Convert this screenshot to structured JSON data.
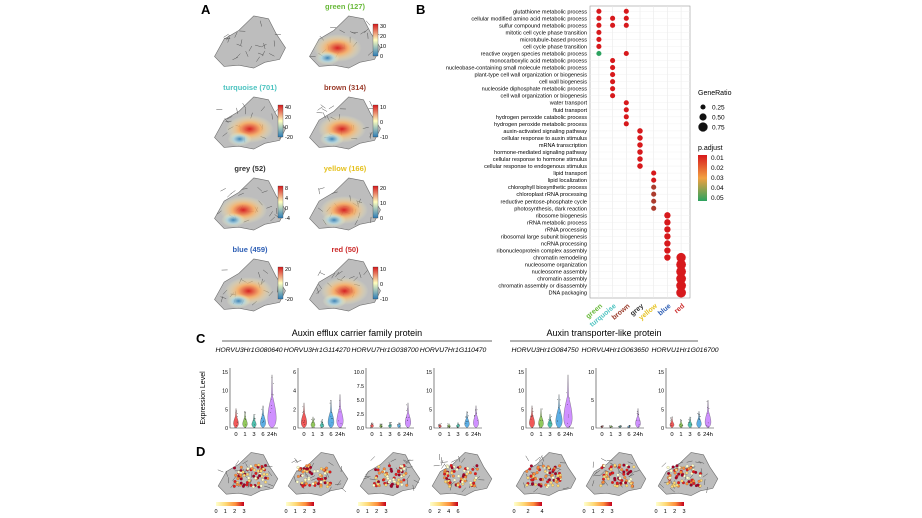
{
  "panel_letters": {
    "a": "A",
    "b": "B",
    "c": "C",
    "d": "D"
  },
  "palette": {
    "panel_bg": "#ffffff",
    "tissue": "#6e6e6e",
    "tissue_light": "#bdbdbd",
    "heat_low": "#2c7bb6",
    "heat_mid": "#ffffbf",
    "heat_high": "#d7191c",
    "dot_low": "#d7191c",
    "dot_high": "#2ca25f",
    "violin_colors": [
      "#ef3b3b",
      "#7fbf3f",
      "#2fb5a0",
      "#3fa0e0",
      "#c77cff"
    ],
    "yellow_ramp": [
      "#ffffcc",
      "#fed976",
      "#fd8d3c",
      "#e31a1c",
      "#a50026"
    ]
  },
  "panelA": {
    "modules": [
      {
        "label": "",
        "color": "#333333",
        "ticks": []
      },
      {
        "label": "green (127)",
        "color": "#69b93a",
        "ticks": [
          "30",
          "20",
          "10",
          "0"
        ]
      },
      {
        "label": "turquoise (701)",
        "color": "#4cc3c0",
        "ticks": [
          "40",
          "20",
          "0",
          "-20"
        ]
      },
      {
        "label": "brown (314)",
        "color": "#9a3b2a",
        "ticks": [
          "10",
          "0",
          "-10"
        ]
      },
      {
        "label": "grey (52)",
        "color": "#333333",
        "ticks": [
          "8",
          "4",
          "0",
          "-4"
        ]
      },
      {
        "label": "yellow (166)",
        "color": "#e5c11e",
        "ticks": [
          "20",
          "10",
          "0"
        ]
      },
      {
        "label": "blue (459)",
        "color": "#2e5fb5",
        "ticks": [
          "20",
          "0",
          "-20"
        ]
      },
      {
        "label": "red (50)",
        "color": "#cc2a2a",
        "ticks": [
          "10",
          "0",
          "-10"
        ]
      }
    ]
  },
  "panelB": {
    "terms": [
      "glutathione metabolic process",
      "cellular modified amino acid metabolic process",
      "sulfur compound metabolic process",
      "mitotic cell cycle phase transition",
      "microtubule-based process",
      "cell cycle phase transition",
      "reactive oxygen species metabolic process",
      "monocarboxylic acid metabolic process",
      "nucleobase-containing small molecule metabolic process",
      "plant-type cell wall organization or biogenesis",
      "cell wall biogenesis",
      "nucleoside diphosphate metabolic process",
      "cell wall organization or biogenesis",
      "water transport",
      "fluid transport",
      "hydrogen peroxide catabolic process",
      "hydrogen peroxide metabolic process",
      "auxin-activated signaling pathway",
      "cellular response to auxin stimulus",
      "mRNA transcription",
      "hormone-mediated signaling pathway",
      "cellular response to hormone stimulus",
      "cellular response to endogenous stimulus",
      "lipid transport",
      "lipid localization",
      "chlorophyll biosynthetic process",
      "chloroplast rRNA processing",
      "reductive pentose-phosphate cycle",
      "photosynthesis, dark reaction",
      "ribosome biogenesis",
      "rRNA metabolic process",
      "rRNA processing",
      "ribosomal large subunit biogenesis",
      "ncRNA processing",
      "ribonucleoprotein complex assembly",
      "chromatin remodeling",
      "nucleosome organization",
      "nucleosome assembly",
      "chromatin assembly",
      "chromatin assembly or disassembly",
      "DNA packaging"
    ],
    "modules": [
      {
        "label": "green",
        "color": "#69b93a"
      },
      {
        "label": "turquoise",
        "color": "#4cc3c0"
      },
      {
        "label": "brown",
        "color": "#9a3b2a"
      },
      {
        "label": "grey",
        "color": "#333333"
      },
      {
        "label": "yellow",
        "color": "#e5c11e"
      },
      {
        "label": "blue",
        "color": "#2e5fb5"
      },
      {
        "label": "red",
        "color": "#cc2a2a"
      }
    ],
    "dots": [
      {
        "term": 0,
        "module": 0,
        "ratio": 0.25,
        "padj": 0.01
      },
      {
        "term": 0,
        "module": 2,
        "ratio": 0.25,
        "padj": 0.01
      },
      {
        "term": 1,
        "module": 0,
        "ratio": 0.25,
        "padj": 0.01
      },
      {
        "term": 1,
        "module": 1,
        "ratio": 0.25,
        "padj": 0.01
      },
      {
        "term": 1,
        "module": 2,
        "ratio": 0.25,
        "padj": 0.01
      },
      {
        "term": 2,
        "module": 0,
        "ratio": 0.25,
        "padj": 0.01
      },
      {
        "term": 2,
        "module": 1,
        "ratio": 0.25,
        "padj": 0.01
      },
      {
        "term": 2,
        "module": 2,
        "ratio": 0.25,
        "padj": 0.01
      },
      {
        "term": 3,
        "module": 0,
        "ratio": 0.25,
        "padj": 0.01
      },
      {
        "term": 4,
        "module": 0,
        "ratio": 0.25,
        "padj": 0.01
      },
      {
        "term": 5,
        "module": 0,
        "ratio": 0.25,
        "padj": 0.01
      },
      {
        "term": 6,
        "module": 0,
        "ratio": 0.25,
        "padj": 0.05
      },
      {
        "term": 6,
        "module": 2,
        "ratio": 0.25,
        "padj": 0.01
      },
      {
        "term": 7,
        "module": 1,
        "ratio": 0.25,
        "padj": 0.01
      },
      {
        "term": 8,
        "module": 1,
        "ratio": 0.25,
        "padj": 0.01
      },
      {
        "term": 9,
        "module": 1,
        "ratio": 0.25,
        "padj": 0.01
      },
      {
        "term": 10,
        "module": 1,
        "ratio": 0.25,
        "padj": 0.01
      },
      {
        "term": 11,
        "module": 1,
        "ratio": 0.25,
        "padj": 0.01
      },
      {
        "term": 12,
        "module": 1,
        "ratio": 0.25,
        "padj": 0.01
      },
      {
        "term": 13,
        "module": 2,
        "ratio": 0.25,
        "padj": 0.01
      },
      {
        "term": 14,
        "module": 2,
        "ratio": 0.25,
        "padj": 0.01
      },
      {
        "term": 15,
        "module": 2,
        "ratio": 0.25,
        "padj": 0.01
      },
      {
        "term": 16,
        "module": 2,
        "ratio": 0.25,
        "padj": 0.01
      },
      {
        "term": 17,
        "module": 3,
        "ratio": 0.3,
        "padj": 0.01
      },
      {
        "term": 18,
        "module": 3,
        "ratio": 0.3,
        "padj": 0.01
      },
      {
        "term": 19,
        "module": 3,
        "ratio": 0.3,
        "padj": 0.01
      },
      {
        "term": 20,
        "module": 3,
        "ratio": 0.3,
        "padj": 0.01
      },
      {
        "term": 21,
        "module": 3,
        "ratio": 0.3,
        "padj": 0.01
      },
      {
        "term": 22,
        "module": 3,
        "ratio": 0.3,
        "padj": 0.01
      },
      {
        "term": 23,
        "module": 4,
        "ratio": 0.25,
        "padj": 0.01
      },
      {
        "term": 24,
        "module": 4,
        "ratio": 0.25,
        "padj": 0.01
      },
      {
        "term": 25,
        "module": 4,
        "ratio": 0.25,
        "padj": 0.02
      },
      {
        "term": 26,
        "module": 4,
        "ratio": 0.25,
        "padj": 0.02
      },
      {
        "term": 27,
        "module": 4,
        "ratio": 0.25,
        "padj": 0.02
      },
      {
        "term": 28,
        "module": 4,
        "ratio": 0.25,
        "padj": 0.02
      },
      {
        "term": 29,
        "module": 5,
        "ratio": 0.4,
        "padj": 0.01
      },
      {
        "term": 30,
        "module": 5,
        "ratio": 0.4,
        "padj": 0.01
      },
      {
        "term": 31,
        "module": 5,
        "ratio": 0.4,
        "padj": 0.01
      },
      {
        "term": 32,
        "module": 5,
        "ratio": 0.4,
        "padj": 0.01
      },
      {
        "term": 33,
        "module": 5,
        "ratio": 0.4,
        "padj": 0.01
      },
      {
        "term": 34,
        "module": 5,
        "ratio": 0.4,
        "padj": 0.01
      },
      {
        "term": 35,
        "module": 5,
        "ratio": 0.4,
        "padj": 0.01
      },
      {
        "term": 35,
        "module": 6,
        "ratio": 0.75,
        "padj": 0.01
      },
      {
        "term": 36,
        "module": 6,
        "ratio": 0.8,
        "padj": 0.01
      },
      {
        "term": 37,
        "module": 6,
        "ratio": 0.8,
        "padj": 0.01
      },
      {
        "term": 38,
        "module": 6,
        "ratio": 0.8,
        "padj": 0.01
      },
      {
        "term": 39,
        "module": 6,
        "ratio": 0.8,
        "padj": 0.01
      },
      {
        "term": 40,
        "module": 6,
        "ratio": 0.8,
        "padj": 0.01
      }
    ],
    "legend_ratio_title": "GeneRatio",
    "legend_ratio": [
      {
        "label": "0.25",
        "value": 0.25
      },
      {
        "label": "0.50",
        "value": 0.5
      },
      {
        "label": "0.75",
        "value": 0.75
      }
    ],
    "legend_padj_title": "p.adjust",
    "legend_padj": [
      "0.01",
      "0.02",
      "0.03",
      "0.04",
      "0.05"
    ]
  },
  "panelC": {
    "ylabel": "Expression Level",
    "groups": [
      {
        "title": "Auxin efflux carrier family protein"
      },
      {
        "title": "Auxin transporter-like protein"
      }
    ],
    "genes": [
      {
        "name": "HORVU3Hr1G080640",
        "ticks": [
          "15",
          "10",
          "5",
          "0"
        ],
        "max": 15,
        "scale": [
          0.35,
          0.3,
          0.25,
          0.4,
          0.95
        ]
      },
      {
        "name": "HORVU3Hr1G114270",
        "ticks": [
          "6",
          "4",
          "2",
          "0"
        ],
        "max": 7,
        "scale": [
          0.45,
          0.2,
          0.15,
          0.5,
          0.6
        ]
      },
      {
        "name": "HORVU7Hr1G038700",
        "ticks": [
          "10.0",
          "7.5",
          "5.0",
          "2.5",
          "0.0"
        ],
        "max": 11,
        "scale": [
          0.1,
          0.08,
          0.1,
          0.1,
          0.45
        ]
      },
      {
        "name": "HORVU7Hr1G110470",
        "ticks": [
          "15",
          "10",
          "5",
          "0"
        ],
        "max": 15,
        "scale": [
          0.08,
          0.08,
          0.1,
          0.3,
          0.4
        ]
      },
      {
        "name": "HORVU3Hr1G084750",
        "ticks": [
          "15",
          "10",
          "5",
          "0"
        ],
        "max": 15,
        "scale": [
          0.4,
          0.35,
          0.25,
          0.6,
          0.95
        ]
      },
      {
        "name": "HORVU4Hr1G063650",
        "ticks": [
          "10",
          "5",
          "0"
        ],
        "max": 12,
        "scale": [
          0.05,
          0.05,
          0.05,
          0.05,
          0.35
        ]
      },
      {
        "name": "HORVU1Hr1G016700",
        "ticks": [
          "15",
          "10",
          "5",
          "0"
        ],
        "max": 15,
        "scale": [
          0.2,
          0.15,
          0.2,
          0.3,
          0.5
        ]
      }
    ],
    "timepoints": [
      "0",
      "1",
      "3",
      "6",
      "24h"
    ]
  },
  "panelD": {
    "scales": [
      [
        "0",
        "1",
        "2",
        "3"
      ],
      [
        "0",
        "1",
        "2",
        "3"
      ],
      [
        "0",
        "1",
        "2",
        "3"
      ],
      [
        "0",
        "2",
        "4",
        "6"
      ],
      [
        "0",
        "2",
        "4"
      ],
      [
        "0",
        "1",
        "2",
        "3"
      ],
      [
        "0",
        "1",
        "2",
        "3"
      ]
    ]
  }
}
